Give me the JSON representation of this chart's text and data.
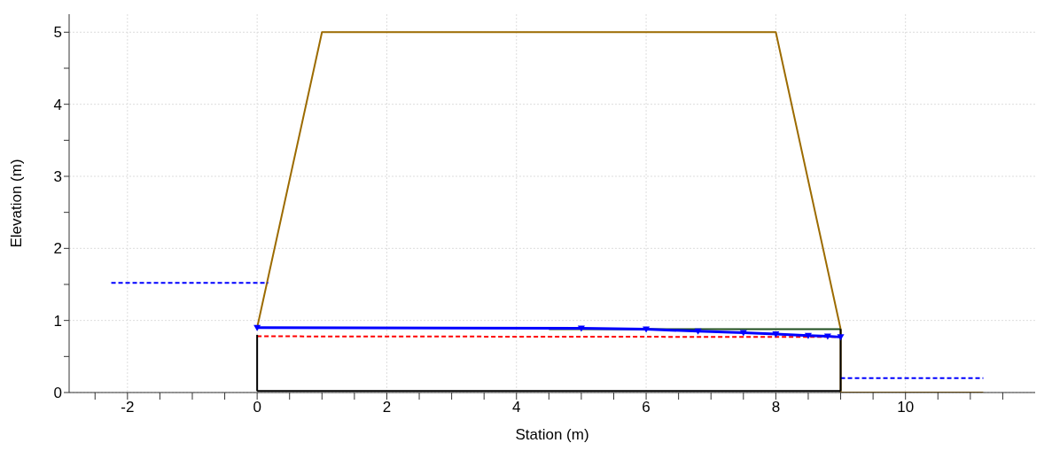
{
  "chart_data": {
    "type": "line",
    "xlabel": "Station (m)",
    "ylabel": "Elevation (m)",
    "xlim": [
      -2.9,
      12
    ],
    "ylim": [
      0,
      5.25
    ],
    "xticks": [
      {
        "value": -2.5,
        "label": null
      },
      -2,
      {
        "value": -1.5,
        "label": null
      },
      {
        "value": -1,
        "label": null
      },
      {
        "value": -0.5,
        "label": null
      },
      0,
      {
        "value": 0.5,
        "label": null
      },
      {
        "value": 1,
        "label": null
      },
      {
        "value": 1.5,
        "label": null
      },
      2,
      {
        "value": 2.5,
        "label": null
      },
      {
        "value": 3,
        "label": null
      },
      {
        "value": 3.5,
        "label": null
      },
      4,
      {
        "value": 4.5,
        "label": null
      },
      {
        "value": 5,
        "label": null
      },
      {
        "value": 5.5,
        "label": null
      },
      6,
      {
        "value": 6.5,
        "label": null
      },
      {
        "value": 7,
        "label": null
      },
      {
        "value": 7.5,
        "label": null
      },
      8,
      {
        "value": 8.5,
        "label": null
      },
      {
        "value": 9,
        "label": null
      },
      {
        "value": 9.5,
        "label": null
      },
      10,
      {
        "value": 10.5,
        "label": null
      },
      {
        "value": 11,
        "label": null
      },
      {
        "value": 11.5,
        "label": null
      }
    ],
    "yticks": [
      0,
      {
        "value": 0.5,
        "label": null
      },
      1,
      {
        "value": 1.5,
        "label": null
      },
      2,
      {
        "value": 2.5,
        "label": null
      },
      3,
      {
        "value": 3.5,
        "label": null
      },
      4,
      {
        "value": 4.5,
        "label": null
      },
      5
    ],
    "grid": true,
    "marker": "none",
    "series": [
      {
        "color": "#9c6b00",
        "x": [
          0,
          1,
          8,
          9,
          9,
          11.2
        ],
        "values": [
          0.9,
          5,
          5,
          0.88,
          0,
          0
        ],
        "line_style": "solid"
      },
      {
        "color": "#1f4d1f",
        "x": [
          4.5,
          9
        ],
        "values": [
          0.88,
          0.88
        ],
        "line_style": "solid"
      },
      {
        "color": "#ff0000",
        "x": [
          0,
          9
        ],
        "values": [
          0.78,
          0.77
        ],
        "line_style": "dashed"
      },
      {
        "color": "#0000ff",
        "x": [
          0,
          5,
          6,
          6.8,
          7.5,
          8,
          8.5,
          8.8,
          9
        ],
        "values": [
          0.9,
          0.89,
          0.88,
          0.85,
          0.83,
          0.81,
          0.79,
          0.78,
          0.77
        ],
        "line_style": "solid",
        "marker": "triangle"
      },
      {
        "color": "#0000ff",
        "x": [
          -2.25,
          0.17
        ],
        "values": [
          1.52,
          1.52
        ],
        "line_style": "dashed"
      },
      {
        "color": "#0000ff",
        "x": [
          9,
          11.2
        ],
        "values": [
          0.2,
          0.2
        ],
        "line_style": "dashed"
      },
      {
        "color": "#000000",
        "x": [
          0,
          9
        ],
        "values": [
          0.02,
          0.02
        ],
        "line_style": "solid"
      },
      {
        "color": "#000000",
        "x": [
          0,
          0
        ],
        "values": [
          0.02,
          0.8
        ],
        "line_style": "solid"
      },
      {
        "color": "#000000",
        "x": [
          9,
          9
        ],
        "values": [
          0.02,
          0.88
        ],
        "line_style": "solid"
      }
    ]
  }
}
